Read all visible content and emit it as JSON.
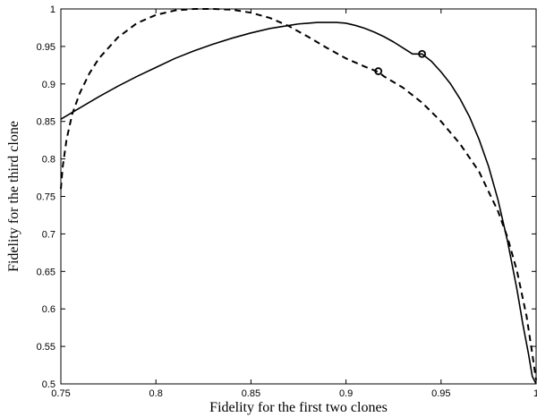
{
  "chart_data": {
    "type": "line",
    "xlabel": "Fidelity for the first two clones",
    "ylabel": "Fidelity for the third clone",
    "xlim": [
      0.75,
      1.0
    ],
    "ylim": [
      0.5,
      1.0
    ],
    "grid": false,
    "xticks": [
      0.75,
      0.8,
      0.85,
      0.9,
      0.95,
      1.0
    ],
    "xtick_labels": [
      "0.75",
      "0.8",
      "0.85",
      "0.9",
      "0.95",
      "1"
    ],
    "yticks": [
      0.5,
      0.55,
      0.6,
      0.65,
      0.7,
      0.75,
      0.8,
      0.85,
      0.9,
      0.95,
      1.0
    ],
    "ytick_labels": [
      "0.5",
      "0.55",
      "0.6",
      "0.65",
      "0.7",
      "0.75",
      "0.8",
      "0.85",
      "0.9",
      "0.95",
      "1"
    ],
    "series": [
      {
        "style": "solid",
        "color": "#000000",
        "x": [
          0.75,
          0.76,
          0.77,
          0.78,
          0.79,
          0.8,
          0.81,
          0.82,
          0.83,
          0.84,
          0.85,
          0.86,
          0.87,
          0.875,
          0.88,
          0.885,
          0.89,
          0.895,
          0.9,
          0.905,
          0.91,
          0.915,
          0.92,
          0.925,
          0.93,
          0.935,
          0.94,
          0.945,
          0.95,
          0.955,
          0.96,
          0.965,
          0.97,
          0.975,
          0.98,
          0.985,
          0.99,
          0.993,
          0.996,
          0.998,
          1.0
        ],
        "y": [
          0.853,
          0.868,
          0.883,
          0.897,
          0.91,
          0.922,
          0.934,
          0.944,
          0.953,
          0.961,
          0.968,
          0.974,
          0.978,
          0.98,
          0.981,
          0.982,
          0.982,
          0.982,
          0.981,
          0.978,
          0.974,
          0.969,
          0.963,
          0.956,
          0.948,
          0.94,
          0.94,
          0.93,
          0.916,
          0.9,
          0.88,
          0.856,
          0.826,
          0.79,
          0.745,
          0.69,
          0.625,
          0.58,
          0.54,
          0.51,
          0.5
        ]
      },
      {
        "style": "dashed",
        "color": "#000000",
        "x": [
          0.75,
          0.751,
          0.753,
          0.756,
          0.76,
          0.765,
          0.77,
          0.78,
          0.79,
          0.8,
          0.81,
          0.82,
          0.83,
          0.84,
          0.85,
          0.86,
          0.87,
          0.88,
          0.89,
          0.9,
          0.91,
          0.917,
          0.92,
          0.93,
          0.94,
          0.95,
          0.96,
          0.97,
          0.98,
          0.985,
          0.99,
          0.995,
          0.998,
          1.0
        ],
        "y": [
          0.76,
          0.79,
          0.826,
          0.86,
          0.888,
          0.914,
          0.934,
          0.962,
          0.981,
          0.992,
          0.998,
          1.0,
          1.0,
          0.999,
          0.995,
          0.988,
          0.977,
          0.963,
          0.948,
          0.934,
          0.923,
          0.916,
          0.91,
          0.895,
          0.875,
          0.85,
          0.82,
          0.783,
          0.73,
          0.695,
          0.65,
          0.59,
          0.54,
          0.505
        ]
      }
    ],
    "markers": [
      {
        "x": 0.94,
        "y": 0.94,
        "shape": "open-circle"
      },
      {
        "x": 0.917,
        "y": 0.917,
        "shape": "open-circle"
      }
    ]
  }
}
